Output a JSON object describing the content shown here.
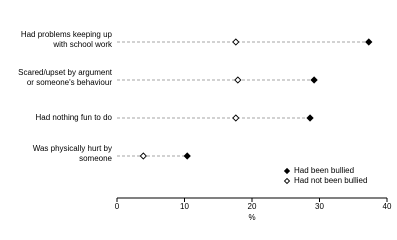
{
  "chart_data": {
    "type": "dot",
    "categories": [
      [
        "Had problems keeping up",
        "with school work"
      ],
      [
        "Scared/upset by argument",
        "or someone's behaviour"
      ],
      [
        "Had nothing fun to do"
      ],
      [
        "Was physically hurt by",
        "someone"
      ]
    ],
    "series": [
      {
        "name": "Had been bullied",
        "color": "#000000",
        "marker": "filled-diamond",
        "values": [
          37.3,
          29.2,
          28.6,
          10.4
        ]
      },
      {
        "name": "Had not been bullied",
        "color": "#000000",
        "marker": "open-diamond",
        "values": [
          17.6,
          17.9,
          17.6,
          3.9
        ]
      }
    ],
    "xlabel": "%",
    "xlim": [
      0,
      40
    ],
    "xticks": [
      0,
      10,
      20,
      30,
      40
    ],
    "legend": "lower right"
  }
}
